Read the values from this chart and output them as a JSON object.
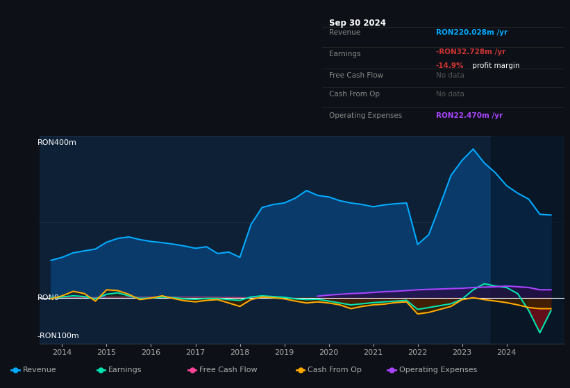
{
  "bg_color": "#0d1117",
  "plot_bg_color": "#0d2035",
  "text_color": "#aaaaaa",
  "white_color": "#ffffff",
  "grid_color": "#2a3a4a",
  "revenue_color": "#00aaff",
  "earnings_color": "#00e5b0",
  "fcf_color": "#ff4499",
  "cashfromop_color": "#ffaa00",
  "opex_color": "#aa44ff",
  "revenue_fill_color": "#0a3a6a",
  "earnings_fill_neg_color": "#6a0f1a",
  "ylabel_400": "RON400m",
  "ylabel_0": "RON0",
  "ylabel_neg100": "-RON100m",
  "xlim_start": 2013.5,
  "xlim_end": 2025.3,
  "ylim_min": -120,
  "ylim_max": 430,
  "xticks": [
    2014,
    2015,
    2016,
    2017,
    2018,
    2019,
    2020,
    2021,
    2022,
    2023,
    2024
  ],
  "info_box": {
    "date": "Sep 30 2024",
    "revenue_label": "Revenue",
    "revenue_value": "RON220.028m /yr",
    "revenue_color": "#00aaff",
    "earnings_label": "Earnings",
    "earnings_value": "-RON32.728m /yr",
    "earnings_color": "#cc3333",
    "margin_value": "-14.9%",
    "margin_text": " profit margin",
    "margin_color": "#cc3333",
    "fcf_label": "Free Cash Flow",
    "fcf_value": "No data",
    "cashfromop_label": "Cash From Op",
    "cashfromop_value": "No data",
    "opex_label": "Operating Expenses",
    "opex_value": "RON22.470m /yr",
    "opex_color": "#aa44ff",
    "nodata_color": "#555555"
  },
  "legend": [
    {
      "label": "Revenue",
      "color": "#00aaff"
    },
    {
      "label": "Earnings",
      "color": "#00e5b0"
    },
    {
      "label": "Free Cash Flow",
      "color": "#ff4499"
    },
    {
      "label": "Cash From Op",
      "color": "#ffaa00"
    },
    {
      "label": "Operating Expenses",
      "color": "#aa44ff"
    }
  ],
  "revenue_x": [
    2013.75,
    2014.0,
    2014.25,
    2014.5,
    2014.75,
    2015.0,
    2015.25,
    2015.5,
    2015.75,
    2016.0,
    2016.25,
    2016.5,
    2016.75,
    2017.0,
    2017.25,
    2017.5,
    2017.75,
    2018.0,
    2018.25,
    2018.5,
    2018.75,
    2019.0,
    2019.25,
    2019.5,
    2019.75,
    2020.0,
    2020.25,
    2020.5,
    2020.75,
    2021.0,
    2021.25,
    2021.5,
    2021.75,
    2022.0,
    2022.25,
    2022.5,
    2022.75,
    2023.0,
    2023.25,
    2023.5,
    2023.75,
    2024.0,
    2024.25,
    2024.5,
    2024.75,
    2025.0
  ],
  "revenue_y": [
    100,
    108,
    120,
    125,
    130,
    148,
    158,
    162,
    155,
    150,
    147,
    143,
    138,
    132,
    136,
    118,
    122,
    108,
    195,
    240,
    248,
    252,
    265,
    285,
    272,
    268,
    258,
    252,
    248,
    242,
    247,
    250,
    252,
    142,
    168,
    245,
    325,
    365,
    395,
    358,
    332,
    298,
    278,
    262,
    222,
    220
  ],
  "earnings_x": [
    2013.75,
    2014.0,
    2014.25,
    2014.5,
    2014.75,
    2015.0,
    2015.25,
    2015.5,
    2015.75,
    2016.0,
    2016.25,
    2016.5,
    2016.75,
    2017.0,
    2017.25,
    2017.5,
    2017.75,
    2018.0,
    2018.25,
    2018.5,
    2018.75,
    2019.0,
    2019.25,
    2019.5,
    2019.75,
    2020.0,
    2020.25,
    2020.5,
    2020.75,
    2021.0,
    2021.25,
    2021.5,
    2021.75,
    2022.0,
    2022.25,
    2022.5,
    2022.75,
    2023.0,
    2023.25,
    2023.5,
    2023.75,
    2024.0,
    2024.25,
    2024.5,
    2024.75,
    2025.0
  ],
  "earnings_y": [
    0,
    3,
    6,
    4,
    -2,
    10,
    14,
    6,
    -1,
    0,
    3,
    1,
    -2,
    -3,
    -1,
    -1,
    -4,
    -6,
    3,
    6,
    4,
    2,
    -2,
    -4,
    -3,
    -8,
    -13,
    -18,
    -15,
    -12,
    -10,
    -8,
    -6,
    -30,
    -25,
    -20,
    -15,
    -3,
    22,
    38,
    32,
    28,
    12,
    -33,
    -92,
    -33
  ],
  "cashfromop_x": [
    2013.75,
    2014.0,
    2014.25,
    2014.5,
    2014.75,
    2015.0,
    2015.25,
    2015.5,
    2015.75,
    2016.0,
    2016.25,
    2016.5,
    2016.75,
    2017.0,
    2017.25,
    2017.5,
    2017.75,
    2018.0,
    2018.25,
    2018.5,
    2018.75,
    2019.0,
    2019.25,
    2019.5,
    2019.75,
    2020.0,
    2020.25,
    2020.5,
    2020.75,
    2021.0,
    2021.25,
    2021.5,
    2021.75,
    2022.0,
    2022.25,
    2022.5,
    2022.75,
    2023.0,
    2023.25,
    2023.5,
    2023.75,
    2024.0,
    2024.25,
    2024.5,
    2024.75,
    2025.0
  ],
  "cashfromop_y": [
    -2,
    6,
    18,
    12,
    -8,
    22,
    20,
    10,
    -4,
    0,
    6,
    -1,
    -7,
    -10,
    -6,
    -4,
    -13,
    -22,
    -4,
    3,
    1,
    -2,
    -8,
    -13,
    -10,
    -13,
    -18,
    -28,
    -22,
    -18,
    -16,
    -12,
    -10,
    -42,
    -38,
    -30,
    -22,
    -4,
    1,
    -4,
    -8,
    -12,
    -18,
    -25,
    -28,
    -28
  ],
  "opex_x": [
    2019.75,
    2020.0,
    2020.25,
    2020.5,
    2020.75,
    2021.0,
    2021.25,
    2021.5,
    2021.75,
    2022.0,
    2022.25,
    2022.5,
    2022.75,
    2023.0,
    2023.25,
    2023.5,
    2023.75,
    2024.0,
    2024.25,
    2024.5,
    2024.75,
    2025.0
  ],
  "opex_y": [
    5,
    8,
    10,
    12,
    13,
    15,
    17,
    18,
    20,
    22,
    23,
    24,
    25,
    26,
    28,
    29,
    30,
    32,
    30,
    28,
    22,
    22
  ]
}
